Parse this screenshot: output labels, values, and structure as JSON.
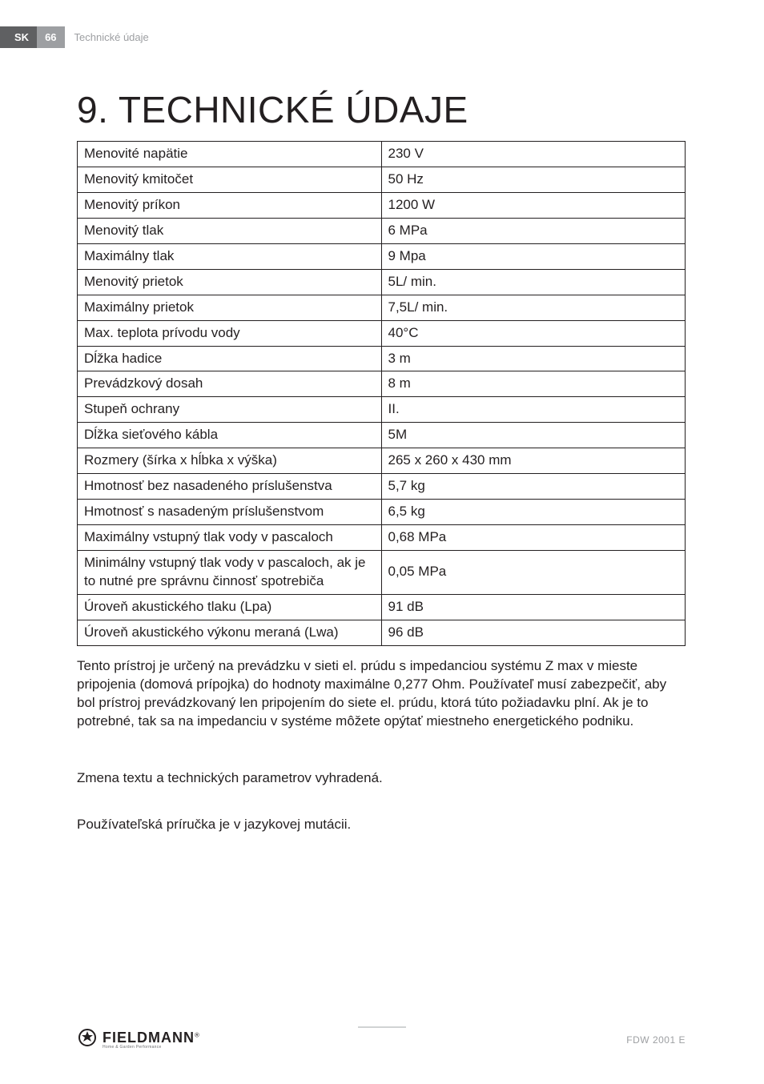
{
  "header": {
    "lang": "SK",
    "page_num": "66",
    "breadcrumb": "Technické údaje"
  },
  "title": "9. TECHNICKÉ ÚDAJE",
  "table": {
    "columns": [
      "label",
      "value"
    ],
    "col_widths_pct": [
      50,
      50
    ],
    "border_color": "#231f20",
    "cell_fontsize": 17,
    "rows": [
      [
        "Menovité napätie",
        "230 V"
      ],
      [
        "Menovitý kmitočet",
        "50 Hz"
      ],
      [
        "Menovitý príkon",
        "1200 W"
      ],
      [
        "Menovitý tlak",
        "6 MPa"
      ],
      [
        "Maximálny tlak",
        "9 Mpa"
      ],
      [
        "Menovitý prietok",
        "5L/ min."
      ],
      [
        "Maximálny prietok",
        "7,5L/ min."
      ],
      [
        "Max. teplota prívodu vody",
        "40°C"
      ],
      [
        "Dĺžka hadice",
        "3 m"
      ],
      [
        "Prevádzkový dosah",
        "8 m"
      ],
      [
        "Stupeň ochrany",
        "II."
      ],
      [
        "Dĺžka sieťového kábla",
        "5M"
      ],
      [
        "Rozmery (šírka x hĺbka x výška)",
        "265 x 260 x 430 mm"
      ],
      [
        "Hmotnosť bez nasadeného príslušenstva",
        "5,7 kg"
      ],
      [
        "Hmotnosť s nasadeným príslušenstvom",
        "6,5 kg"
      ],
      [
        "Maximálny vstupný tlak vody v pascaloch",
        "0,68 MPa"
      ],
      [
        "Minimálny vstupný tlak vody v pascaloch, ak je to nutné pre správnu činnosť spotrebiča",
        "0,05 MPa"
      ],
      [
        "Úroveň akustického tlaku (Lpa)",
        "91 dB"
      ],
      [
        "Úroveň akustického výkonu meraná (Lwa)",
        "96 dB"
      ]
    ]
  },
  "paragraphs": {
    "p1": "Tento prístroj je určený na prevádzku v sieti el. prúdu s impedanciou systému Z max v mieste pripojenia (domová prípojka) do hodnoty maximálne 0,277 Ohm. Používateľ musí zabezpečiť, aby bol prístroj prevádzkovaný len pripojením do siete el. prúdu, ktorá túto požiadavku plní. Ak je to potrebné, tak sa na impedanciu v systéme môžete opýtať miestneho energetického podniku.",
    "p2": "Zmena textu a technických parametrov vyhradená.",
    "p3": "Používateľská príručka je v jazykovej mutácii."
  },
  "footer": {
    "brand": "FIELDMANN",
    "brand_reg": "®",
    "tagline": "Home & Garden Performance",
    "model": "FDW 2001 E"
  },
  "colors": {
    "text": "#231f20",
    "header_lang_bg": "#5f6062",
    "header_page_bg": "#9d9fa2",
    "header_fg": "#ffffff",
    "breadcrumb": "#9d9fa2",
    "footer_model": "#9d9fa2",
    "footer_tag": "#6d6e71",
    "divider": "#d1d3d4",
    "border": "#231f20",
    "bg": "#ffffff"
  },
  "typography": {
    "title_fontsize": 46,
    "title_weight": 300,
    "body_fontsize": 17,
    "header_fontsize": 13,
    "brand_fontsize": 18,
    "model_fontsize": 12
  }
}
